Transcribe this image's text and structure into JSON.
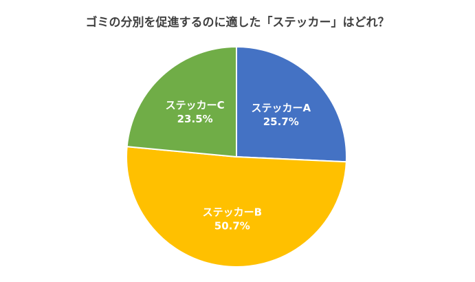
{
  "chart_data": {
    "type": "pie",
    "title": "ゴミの分別を促進するのに適した「ステッカー」はどれ？",
    "slices": [
      {
        "label": "ステッカーA",
        "value": 25.7,
        "value_label": "25.7%",
        "color": "#4472C4"
      },
      {
        "label": "ステッカーB",
        "value": 50.7,
        "value_label": "50.7%",
        "color": "#FFC000"
      },
      {
        "label": "ステッカーC",
        "value": 23.5,
        "value_label": "23.5%",
        "color": "#70AD47"
      }
    ]
  }
}
